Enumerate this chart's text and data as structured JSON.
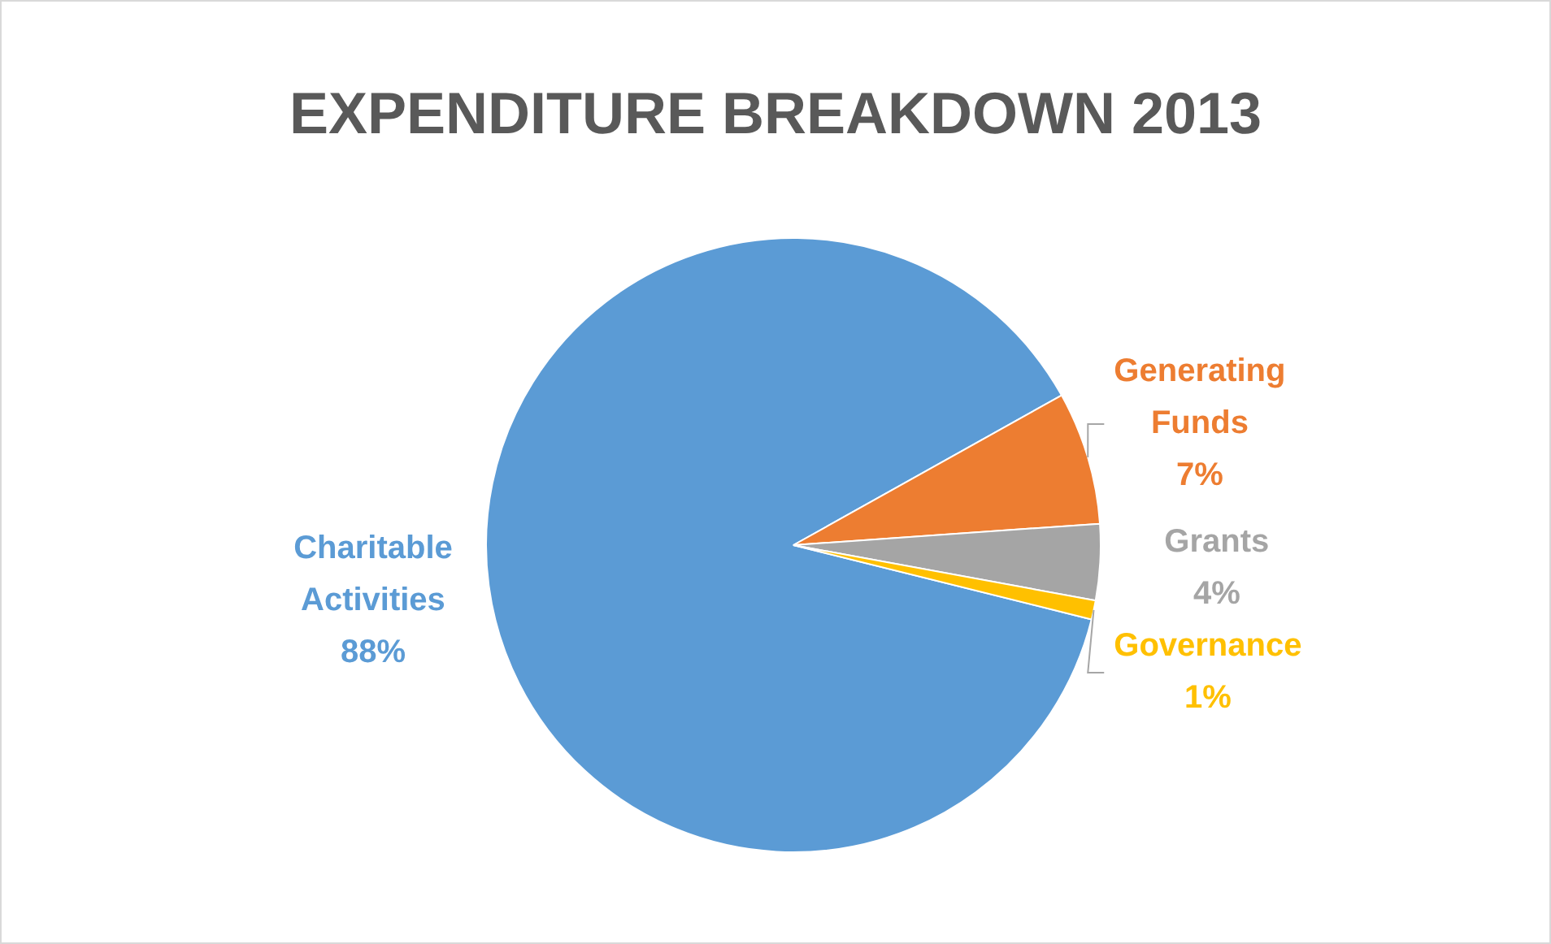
{
  "chart_data": {
    "type": "pie",
    "title": "EXPENDITURE BREAKDOWN 2013",
    "categories": [
      "Charitable Activities",
      "Generating Funds",
      "Grants",
      "Governance"
    ],
    "values": [
      88,
      7,
      4,
      1
    ],
    "colors": [
      "#5b9bd5",
      "#ed7d31",
      "#a5a5a5",
      "#ffc000"
    ],
    "value_labels": [
      "88%",
      "7%",
      "4%",
      "1%"
    ],
    "legend": false
  }
}
